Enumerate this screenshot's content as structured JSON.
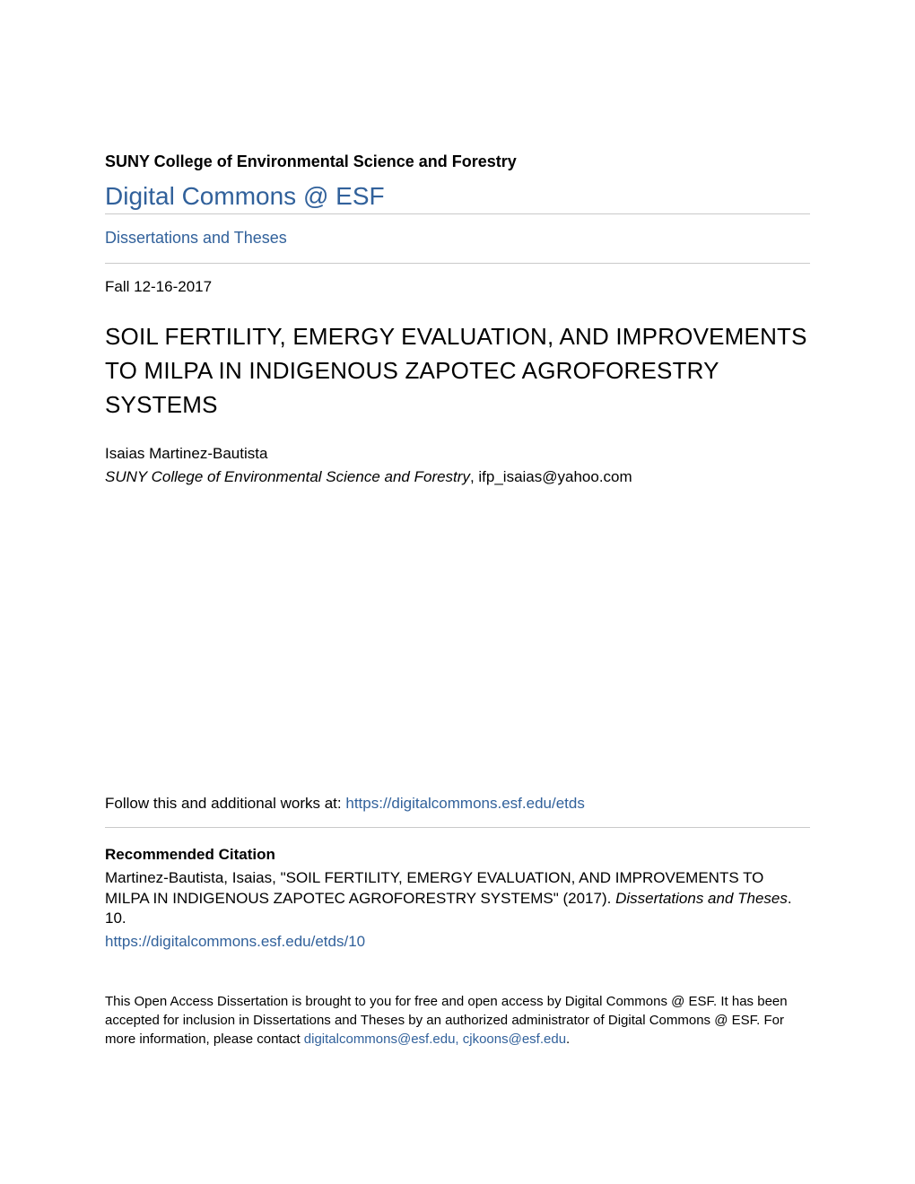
{
  "header": {
    "institution": "SUNY College of Environmental Science and Forestry",
    "site_name": "Digital Commons @ ESF",
    "section_link": "Dissertations and Theses"
  },
  "meta": {
    "date": "Fall 12-16-2017"
  },
  "work": {
    "title": "SOIL FERTILITY, EMERGY EVALUATION, AND IMPROVEMENTS TO MILPA IN INDIGENOUS ZAPOTEC AGROFORESTRY SYSTEMS",
    "author": "Isaias Martinez-Bautista",
    "affiliation": "SUNY College of Environmental Science and Forestry",
    "email": ", ifp_isaias@yahoo.com"
  },
  "follow": {
    "prefix": "Follow this and additional works at: ",
    "url": "https://digitalcommons.esf.edu/etds"
  },
  "citation": {
    "heading": "Recommended Citation",
    "text_before_series": "Martinez-Bautista, Isaias, \"SOIL FERTILITY, EMERGY EVALUATION, AND IMPROVEMENTS TO MILPA IN INDIGENOUS ZAPOTEC AGROFORESTRY SYSTEMS\" (2017). ",
    "series": "Dissertations and Theses",
    "text_after_series": ". 10.",
    "url": "https://digitalcommons.esf.edu/etds/10"
  },
  "footer": {
    "text_before_email": "This Open Access Dissertation is brought to you for free and open access by Digital Commons @ ESF. It has been accepted for inclusion in Dissertations and Theses by an authorized administrator of Digital Commons @ ESF. For more information, please contact ",
    "emails": "digitalcommons@esf.edu, cjkoons@esf.edu",
    "period": "."
  },
  "colors": {
    "link": "#31619b",
    "text": "#000000",
    "divider": "#c9c9c9",
    "background": "#ffffff"
  }
}
